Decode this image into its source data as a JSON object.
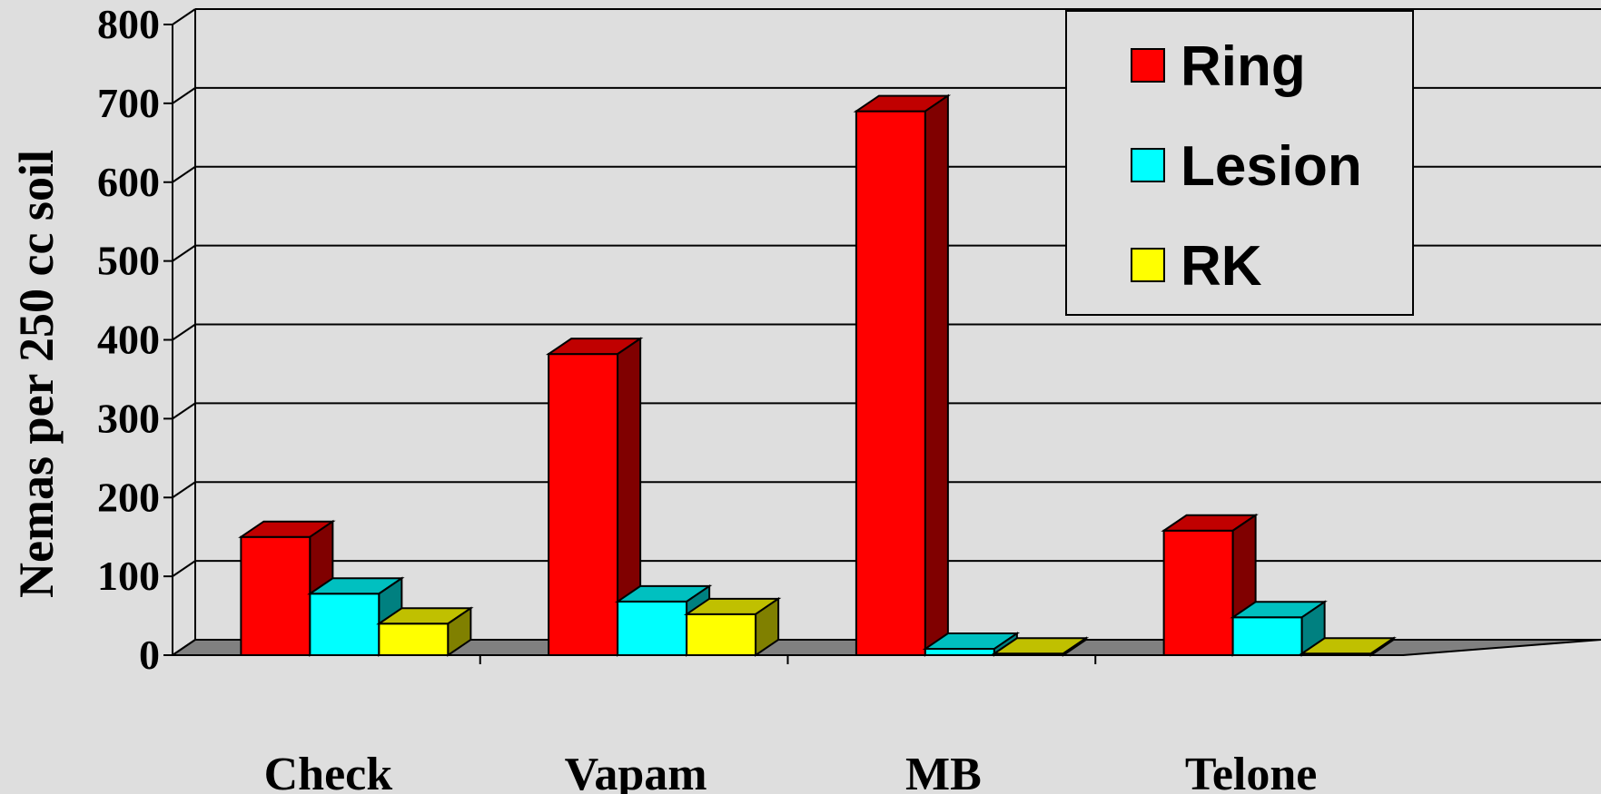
{
  "chart_data": {
    "type": "bar",
    "ylabel": "Nemas per 250 cc soil",
    "xlabel": "",
    "categories": [
      "Check",
      "Vapam",
      "MB",
      "Telone"
    ],
    "series": [
      {
        "name": "Ring",
        "values": [
          150,
          382,
          690,
          158
        ]
      },
      {
        "name": "Lesion",
        "values": [
          78,
          68,
          8,
          48
        ]
      },
      {
        "name": "RK",
        "values": [
          40,
          52,
          2,
          2
        ]
      }
    ],
    "ylim": [
      0,
      800
    ],
    "yticks": [
      "0",
      "100",
      "200",
      "300",
      "400",
      "500",
      "600",
      "700",
      "800"
    ],
    "grid": true,
    "legend_position": "top-right",
    "colors": {
      "Ring": {
        "front": "#ff0000",
        "top": "#c00000",
        "side": "#800000"
      },
      "Lesion": {
        "front": "#00ffff",
        "top": "#00c0c0",
        "side": "#008080"
      },
      "RK": {
        "front": "#ffff00",
        "top": "#c0c000",
        "side": "#808000"
      },
      "background": "#dedede",
      "floor": "#808080"
    }
  }
}
